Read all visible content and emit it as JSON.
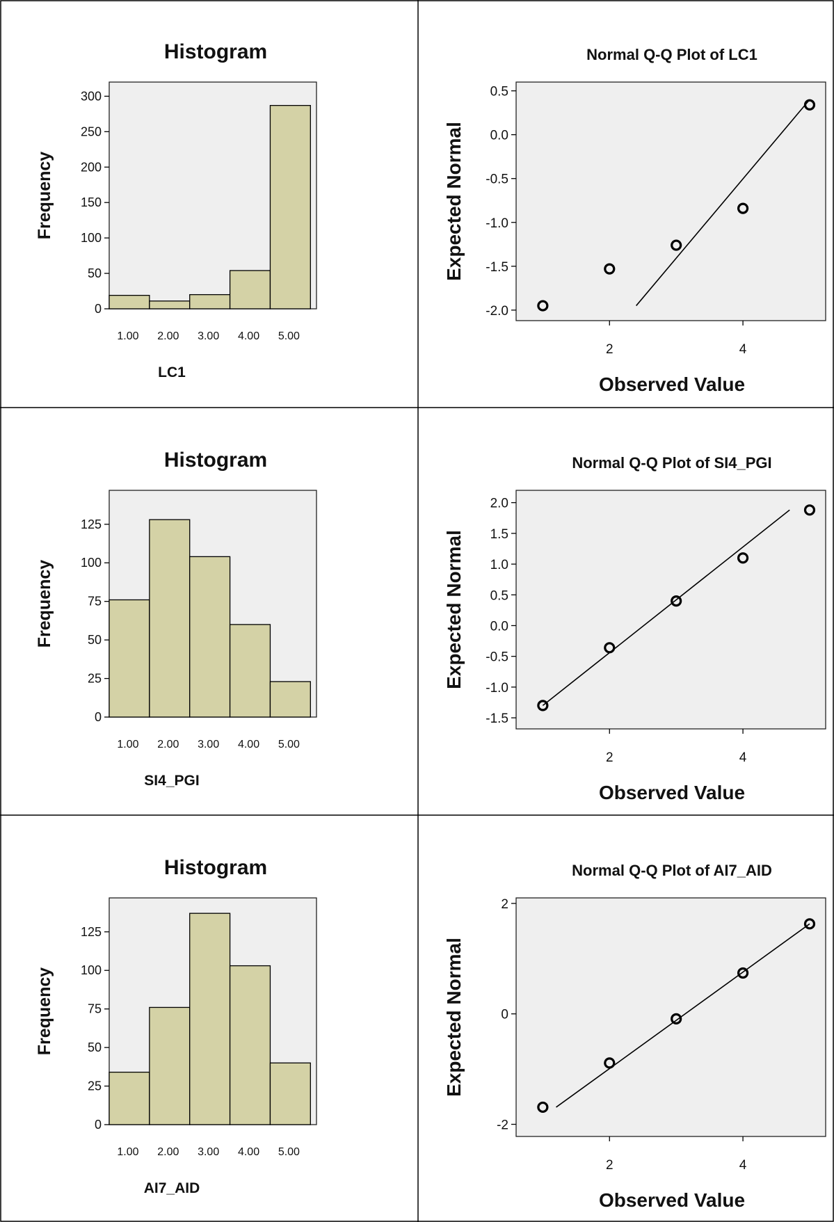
{
  "chart_data": [
    {
      "type": "bar",
      "title": "Histogram",
      "xlabel": "LC1",
      "ylabel": "Frequency",
      "categories": [
        "1.00",
        "2.00",
        "3.00",
        "4.00",
        "5.00"
      ],
      "values": [
        19,
        11,
        20,
        54,
        287
      ],
      "yticks": [
        0,
        50,
        100,
        150,
        200,
        250,
        300
      ],
      "ylim": [
        0,
        320
      ],
      "grid": false,
      "bar_color": "#d4d2a6"
    },
    {
      "type": "scatter",
      "title": "Normal Q-Q Plot of LC1",
      "xlabel": "Observed Value",
      "ylabel": "Expected Normal",
      "points": [
        [
          1,
          -1.95
        ],
        [
          2,
          -1.53
        ],
        [
          3,
          -1.26
        ],
        [
          4,
          -0.84
        ],
        [
          5,
          0.34
        ]
      ],
      "line": [
        [
          2.4,
          -1.95
        ],
        [
          5.0,
          0.4
        ]
      ],
      "xticks": [
        2,
        4
      ],
      "yticks": [
        0.5,
        0.0,
        -0.5,
        -1.0,
        -1.5,
        -2.0
      ],
      "ytick_labels": [
        "0.5",
        "0.0",
        "-0.5",
        "-1.0",
        "-1.5",
        "-2.0"
      ],
      "xlim": [
        0.6,
        5.24
      ],
      "ylim": [
        -2.12,
        0.6
      ],
      "grid": false
    },
    {
      "type": "bar",
      "title": "Histogram",
      "xlabel": "SI4_PGI",
      "ylabel": "Frequency",
      "categories": [
        "1.00",
        "2.00",
        "3.00",
        "4.00",
        "5.00"
      ],
      "values": [
        76,
        128,
        104,
        60,
        23
      ],
      "yticks": [
        0,
        25,
        50,
        75,
        100,
        125
      ],
      "ylim": [
        0,
        147
      ],
      "grid": false,
      "bar_color": "#d4d2a6"
    },
    {
      "type": "scatter",
      "title": "Normal Q-Q Plot of SI4_PGI",
      "xlabel": "Observed Value",
      "ylabel": "Expected Normal",
      "points": [
        [
          1,
          -1.3
        ],
        [
          2,
          -0.36
        ],
        [
          3,
          0.4
        ],
        [
          4,
          1.1
        ],
        [
          5,
          1.88
        ]
      ],
      "line": [
        [
          1.0,
          -1.3
        ],
        [
          4.7,
          1.88
        ]
      ],
      "xticks": [
        2,
        4
      ],
      "yticks": [
        2.0,
        1.5,
        1.0,
        0.5,
        0.0,
        -0.5,
        -1.0,
        -1.5
      ],
      "ytick_labels": [
        "2.0",
        "1.5",
        "1.0",
        "0.5",
        "0.0",
        "-0.5",
        "-1.0",
        "-1.5"
      ],
      "xlim": [
        0.6,
        5.24
      ],
      "ylim": [
        -1.68,
        2.2
      ],
      "grid": false
    },
    {
      "type": "bar",
      "title": "Histogram",
      "xlabel": "AI7_AID",
      "ylabel": "Frequency",
      "categories": [
        "1.00",
        "2.00",
        "3.00",
        "4.00",
        "5.00"
      ],
      "values": [
        34,
        76,
        137,
        103,
        40
      ],
      "yticks": [
        0,
        25,
        50,
        75,
        100,
        125
      ],
      "ylim": [
        0,
        147
      ],
      "grid": false,
      "bar_color": "#d4d2a6"
    },
    {
      "type": "scatter",
      "title": "Normal Q-Q Plot of AI7_AID",
      "xlabel": "Observed Value",
      "ylabel": "Expected Normal",
      "points": [
        [
          1,
          -1.69
        ],
        [
          2,
          -0.89
        ],
        [
          3,
          -0.09
        ],
        [
          4,
          0.74
        ],
        [
          5,
          1.63
        ]
      ],
      "line": [
        [
          1.2,
          -1.69
        ],
        [
          5.0,
          1.63
        ]
      ],
      "xticks": [
        2,
        4
      ],
      "yticks": [
        2,
        0,
        -2
      ],
      "ytick_labels": [
        "2",
        "0",
        "-2"
      ],
      "xlim": [
        0.6,
        5.24
      ],
      "ylim": [
        -2.22,
        2.1
      ],
      "grid": false
    }
  ]
}
